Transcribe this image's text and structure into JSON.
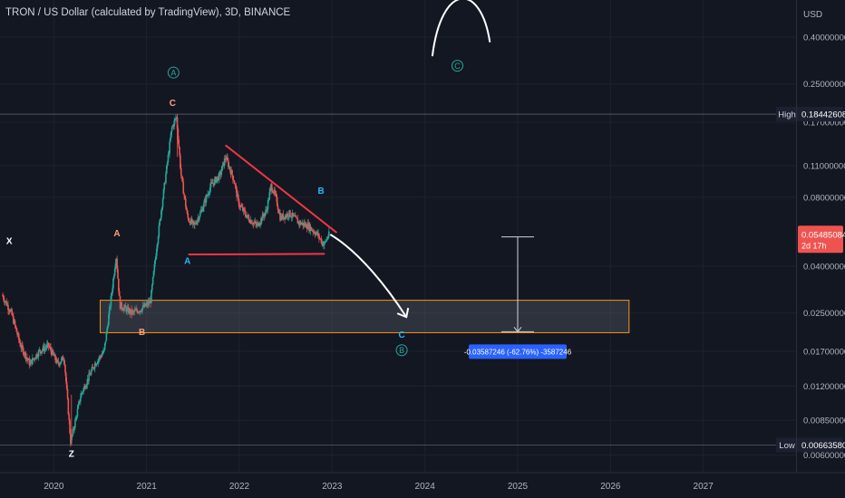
{
  "header": {
    "title": "TRON / US Dollar (calculated by TradingView), 3D, BINANCE"
  },
  "price_axis": {
    "currency": "USD",
    "high_label": "High",
    "high_value": "0.18442608",
    "low_label": "Low",
    "low_value": "0.00663580",
    "last_price": "0.05485084",
    "countdown": "2d 17h"
  },
  "measure": {
    "label": "-0.03587246 (-62.76%) -3587246"
  },
  "annotations": {
    "wave_labels": [
      "X",
      "Z",
      "A",
      "B",
      "C",
      "A",
      "B",
      "C"
    ],
    "circle_labels": [
      "A",
      "B",
      "C"
    ]
  },
  "colors": {
    "background": "#131722",
    "up": "#26a69a",
    "down": "#ef5350",
    "triangle": "#f23645",
    "zone_border": "#f7931a",
    "accent_blue": "#2962ff",
    "wave_orange": "#ff9f7a",
    "wave_blue": "#29b6f6",
    "circle": "#26a69a"
  },
  "chart_data": {
    "type": "candlestick",
    "title": "TRON / US Dollar (calculated by TradingView), 3D, BINANCE",
    "scale": "log",
    "ylim": [
      0.0055,
      0.55
    ],
    "y_ticks": [
      0.4,
      0.25,
      0.17,
      0.11,
      0.08,
      0.04,
      0.025,
      0.017,
      0.012,
      0.0085,
      0.006
    ],
    "y_tick_labels": [
      "0.40000000",
      "0.25000000",
      "0.17000000",
      "0.11000000",
      "0.08000000",
      "0.04000000",
      "0.02500000",
      "0.01700000",
      "0.01200000",
      "0.00850000",
      "0.00600000"
    ],
    "x_ticks": [
      2020,
      2021,
      2022,
      2023,
      2024,
      2025,
      2026,
      2027
    ],
    "x_tick_labels": [
      "2020",
      "2021",
      "2022",
      "2023",
      "2024",
      "2025",
      "2026",
      "2027"
    ],
    "xlim": [
      2019.42,
      2028.0
    ],
    "price_path": [
      [
        2019.45,
        0.03
      ],
      [
        2019.55,
        0.025
      ],
      [
        2019.65,
        0.018
      ],
      [
        2019.75,
        0.015
      ],
      [
        2019.85,
        0.017
      ],
      [
        2019.95,
        0.018
      ],
      [
        2020.05,
        0.015
      ],
      [
        2020.12,
        0.016
      ],
      [
        2020.19,
        0.0068
      ],
      [
        2020.3,
        0.011
      ],
      [
        2020.45,
        0.015
      ],
      [
        2020.55,
        0.017
      ],
      [
        2020.63,
        0.03
      ],
      [
        2020.68,
        0.045
      ],
      [
        2020.72,
        0.027
      ],
      [
        2020.85,
        0.025
      ],
      [
        2020.95,
        0.026
      ],
      [
        2021.05,
        0.028
      ],
      [
        2021.12,
        0.05
      ],
      [
        2021.2,
        0.09
      ],
      [
        2021.28,
        0.16
      ],
      [
        2021.33,
        0.18
      ],
      [
        2021.38,
        0.1
      ],
      [
        2021.45,
        0.065
      ],
      [
        2021.52,
        0.06
      ],
      [
        2021.6,
        0.07
      ],
      [
        2021.7,
        0.09
      ],
      [
        2021.8,
        0.1
      ],
      [
        2021.86,
        0.12
      ],
      [
        2021.95,
        0.095
      ],
      [
        2022.0,
        0.075
      ],
      [
        2022.1,
        0.065
      ],
      [
        2022.2,
        0.06
      ],
      [
        2022.3,
        0.07
      ],
      [
        2022.35,
        0.09
      ],
      [
        2022.4,
        0.08
      ],
      [
        2022.45,
        0.065
      ],
      [
        2022.55,
        0.068
      ],
      [
        2022.65,
        0.062
      ],
      [
        2022.75,
        0.06
      ],
      [
        2022.85,
        0.055
      ],
      [
        2022.92,
        0.0495
      ],
      [
        2022.97,
        0.0549
      ]
    ],
    "high": {
      "x": 2021.33,
      "y": 0.18442608
    },
    "low": {
      "x": 2020.19,
      "y": 0.0066358
    },
    "last": {
      "x": 2022.97,
      "y": 0.05485084
    },
    "support_zone": {
      "x_from": 2020.5,
      "x_to": 2026.2,
      "y_from": 0.0205,
      "y_to": 0.0284
    },
    "triangle": {
      "upper": [
        [
          2021.85,
          0.135
        ],
        [
          2023.05,
          0.056
        ]
      ],
      "lower": [
        [
          2021.45,
          0.045
        ],
        [
          2022.92,
          0.0453
        ]
      ]
    },
    "projection": [
      [
        2022.98,
        0.055
      ],
      [
        2023.3,
        0.046
      ],
      [
        2023.6,
        0.032
      ],
      [
        2023.8,
        0.024
      ]
    ],
    "c_arc": [
      [
        2024.08,
        0.33
      ],
      [
        2024.4,
        0.53
      ],
      [
        2024.7,
        0.38
      ]
    ],
    "measure": {
      "x": 2025.0,
      "y_from": 0.0537,
      "y_to": 0.0207,
      "value": -0.03587246,
      "percent": -62.76
    },
    "wave_points": [
      {
        "label": "X",
        "x": 2019.52,
        "y": 0.05,
        "color": "white"
      },
      {
        "label": "Z",
        "x": 2020.19,
        "y": 0.0059,
        "color": "white"
      },
      {
        "label": "A",
        "x": 2020.68,
        "y": 0.054,
        "color": "orange"
      },
      {
        "label": "B",
        "x": 2020.95,
        "y": 0.02,
        "color": "orange"
      },
      {
        "label": "C",
        "x": 2021.28,
        "y": 0.2,
        "color": "orange"
      },
      {
        "label": "A",
        "x": 2021.44,
        "y": 0.041,
        "color": "blue"
      },
      {
        "label": "B",
        "x": 2022.88,
        "y": 0.083,
        "color": "blue"
      },
      {
        "label": "C",
        "x": 2023.75,
        "y": 0.0195,
        "color": "blue"
      }
    ],
    "circle_points": [
      {
        "label": "A",
        "x": 2021.29,
        "y": 0.28
      },
      {
        "label": "B",
        "x": 2023.75,
        "y": 0.0172
      },
      {
        "label": "C",
        "x": 2024.35,
        "y": 0.3
      }
    ]
  }
}
